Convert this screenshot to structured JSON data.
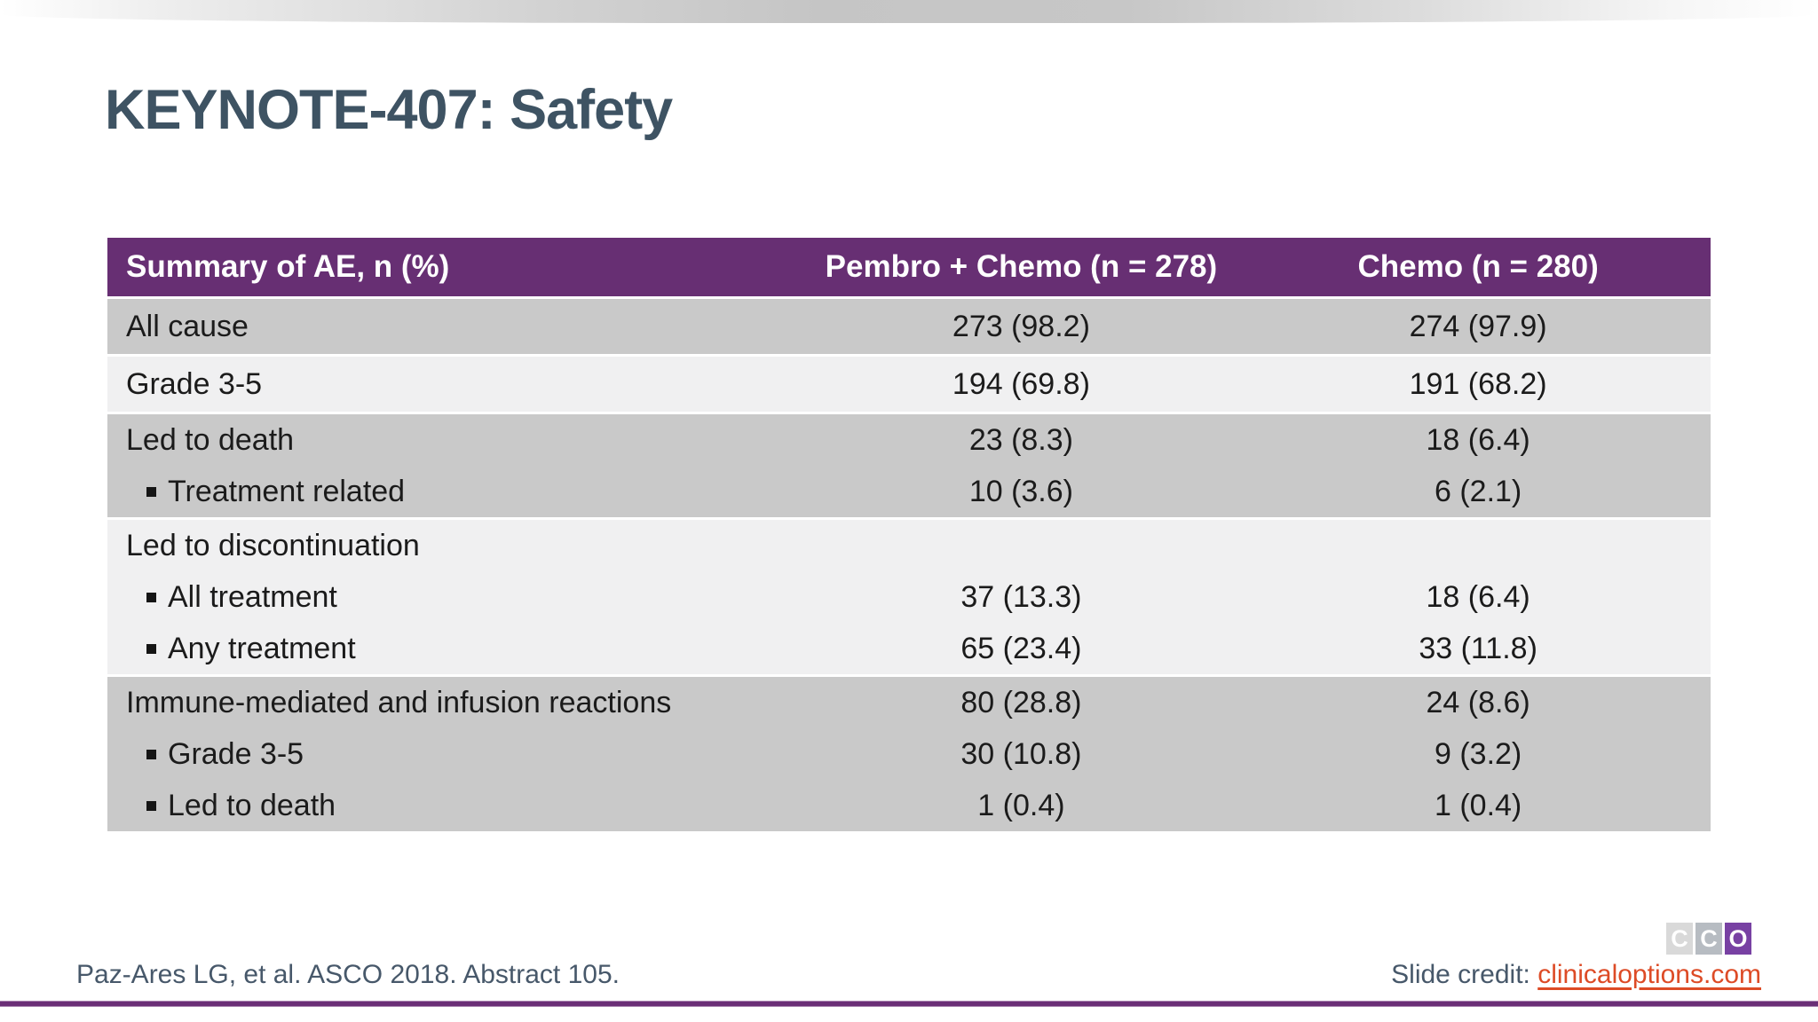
{
  "slide": {
    "title": "KEYNOTE-407: Safety",
    "footer_left": "Paz-Ares LG, et al. ASCO 2018. Abstract 105.",
    "slide_credit_label": "Slide credit: ",
    "slide_credit_link": "clinicaloptions.com"
  },
  "logo": {
    "squares": [
      {
        "letter": "C",
        "color": "#D9D9D9"
      },
      {
        "letter": "C",
        "color": "#B7BCC2"
      },
      {
        "letter": "O",
        "color": "#7841A3"
      }
    ]
  },
  "colors": {
    "header_purple": "#672F73",
    "row_gray": "#C9C9C9",
    "row_light": "#F0F0F1",
    "title_slate": "#3E5363",
    "link_orange": "#DD4B26",
    "bottom_line_purple": "#6B2F77"
  },
  "table": {
    "columns": [
      "Summary of AE, n (%)",
      "Pembro + Chemo (n = 278)",
      "Chemo (n = 280)"
    ],
    "groups": [
      {
        "shade": "gray",
        "rows": [
          {
            "label": "All cause",
            "indent": false,
            "pembro": "273 (98.2)",
            "chemo": "274 (97.9)"
          }
        ]
      },
      {
        "shade": "light",
        "rows": [
          {
            "label": "Grade 3-5",
            "indent": false,
            "pembro": "194 (69.8)",
            "chemo": "191 (68.2)"
          }
        ]
      },
      {
        "shade": "gray",
        "rows": [
          {
            "label": "Led to death",
            "indent": false,
            "pembro": "23 (8.3)",
            "chemo": "18 (6.4)"
          },
          {
            "label": "Treatment related",
            "indent": true,
            "pembro": "10 (3.6)",
            "chemo": "6 (2.1)"
          }
        ]
      },
      {
        "shade": "light",
        "rows": [
          {
            "label": "Led to discontinuation",
            "indent": false,
            "pembro": "",
            "chemo": ""
          },
          {
            "label": "All treatment",
            "indent": true,
            "pembro": "37 (13.3)",
            "chemo": "18 (6.4)"
          },
          {
            "label": "Any treatment",
            "indent": true,
            "pembro": "65 (23.4)",
            "chemo": "33 (11.8)"
          }
        ]
      },
      {
        "shade": "gray",
        "rows": [
          {
            "label": "Immune-mediated and infusion reactions",
            "indent": false,
            "pembro": "80 (28.8)",
            "chemo": "24 (8.6)"
          },
          {
            "label": "Grade 3-5",
            "indent": true,
            "pembro": "30 (10.8)",
            "chemo": "9 (3.2)"
          },
          {
            "label": "Led to death",
            "indent": true,
            "pembro": "1 (0.4)",
            "chemo": "1 (0.4)"
          }
        ]
      }
    ]
  }
}
